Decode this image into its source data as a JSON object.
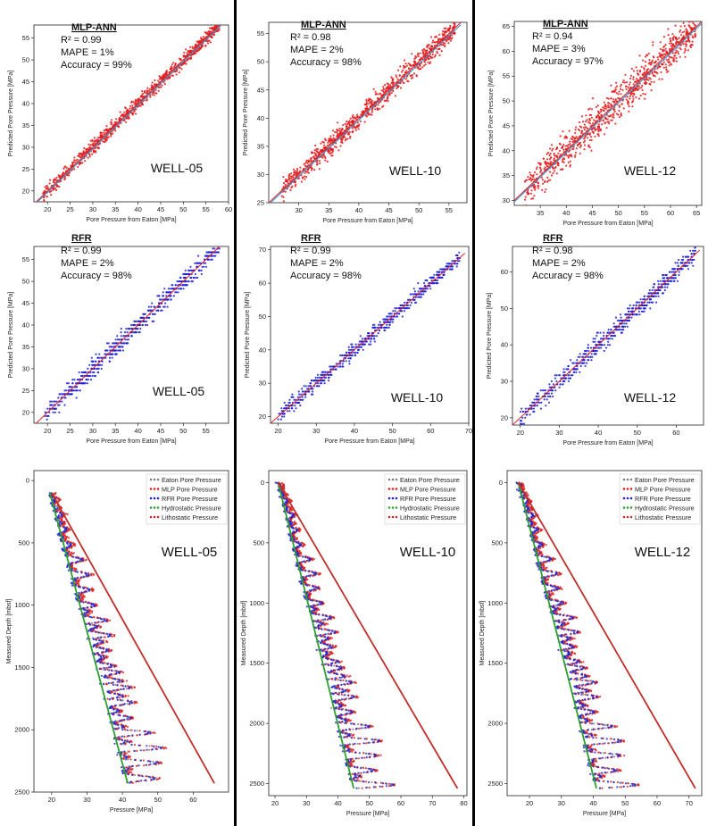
{
  "colors": {
    "mlp_points": "#e31a1c",
    "rfr_points": "#1f1fd6",
    "fit_line": "#4a90c8",
    "identity_line": "#e02020",
    "eaton": "#7f7f7f",
    "hydrostatic": "#2ca02c",
    "lithostatic": "#c0302a",
    "separator": "#000000"
  },
  "chart_data": [
    {
      "type": "scatter",
      "model": "MLP-ANN",
      "well": "WELL-05",
      "title": "",
      "xlabel": "Pore Pressure from Eaton [MPa]",
      "ylabel": "Predicted Pore Pressure [MPa]",
      "xlim": [
        17,
        60
      ],
      "ylim": [
        17.5,
        58
      ],
      "xticks": [
        20,
        25,
        30,
        35,
        40,
        45,
        50,
        55,
        60
      ],
      "yticks": [
        20,
        25,
        30,
        35,
        40,
        45,
        50,
        55
      ],
      "stats": [
        "R² = 0.99",
        "MAPE = 1%",
        "Accuracy = 99%"
      ],
      "x_range": [
        19,
        58
      ],
      "spread": 1.5,
      "color": "mlp_points"
    },
    {
      "type": "scatter",
      "model": "MLP-ANN",
      "well": "WELL-10",
      "title": "",
      "xlabel": "Pore Pressure from Eaton [MPa]",
      "ylabel": "Predicted Pore Pressure [MPa]",
      "xlim": [
        25,
        58
      ],
      "ylim": [
        25,
        57
      ],
      "xticks": [
        30,
        35,
        40,
        45,
        50,
        55
      ],
      "yticks": [
        25,
        30,
        35,
        40,
        45,
        50,
        55
      ],
      "stats": [
        "R² = 0.98",
        "MAPE = 2%",
        "Accuracy = 98%"
      ],
      "x_range": [
        27,
        56
      ],
      "spread": 1.8,
      "color": "mlp_points"
    },
    {
      "type": "scatter",
      "model": "MLP-ANN",
      "well": "WELL-12",
      "title": "",
      "xlabel": "Pore Pressure from Eaton [MPa]",
      "ylabel": "Predicted Pore Pressure [MPa]",
      "xlim": [
        30,
        66
      ],
      "ylim": [
        29,
        66
      ],
      "xticks": [
        35,
        40,
        45,
        50,
        55,
        60,
        65
      ],
      "yticks": [
        30,
        35,
        40,
        45,
        50,
        55,
        60,
        65
      ],
      "stats": [
        "R² = 0.94",
        "MAPE = 3%",
        "Accuracy = 97%"
      ],
      "x_range": [
        32,
        65
      ],
      "spread": 3.5,
      "color": "mlp_points"
    },
    {
      "type": "scatter",
      "model": "RFR",
      "well": "WELL-05",
      "title": "",
      "xlabel": "Pore Pressure from Eaton [MPa]",
      "ylabel": "Predicted Pore Pressure [MPa]",
      "xlim": [
        17,
        60
      ],
      "ylim": [
        17.5,
        58
      ],
      "xticks": [
        20,
        25,
        30,
        35,
        40,
        45,
        50,
        55
      ],
      "yticks": [
        20,
        25,
        30,
        35,
        40,
        45,
        50,
        55
      ],
      "stats": [
        "R² = 0.99",
        "MAPE = 2%",
        "Accuracy = 98%"
      ],
      "x_range": [
        19,
        58
      ],
      "spread": 2.0,
      "color": "rfr_points"
    },
    {
      "type": "scatter",
      "model": "RFR",
      "well": "WELL-10",
      "title": "",
      "xlabel": "Pore Pressure from Eaton [MPa]",
      "ylabel": "Predicted Pore Pressure [MPa]",
      "xlim": [
        18,
        70
      ],
      "ylim": [
        18,
        71
      ],
      "xticks": [
        20,
        30,
        40,
        50,
        60,
        70
      ],
      "yticks": [
        20,
        30,
        40,
        50,
        60,
        70
      ],
      "stats": [
        "R² = 0.99",
        "MAPE = 2%",
        "Accuracy = 98%"
      ],
      "x_range": [
        20,
        68
      ],
      "spread": 2.0,
      "color": "rfr_points"
    },
    {
      "type": "scatter",
      "model": "RFR",
      "well": "WELL-12",
      "title": "",
      "xlabel": "Pore Pressure from Eaton [MPa]",
      "ylabel": "Predicted Pore Pressure [MPa]",
      "xlim": [
        18,
        67
      ],
      "ylim": [
        18,
        67
      ],
      "xticks": [
        20,
        30,
        40,
        50,
        60
      ],
      "yticks": [
        20,
        30,
        40,
        50,
        60
      ],
      "stats": [
        "R² = 0.98",
        "MAPE = 2%",
        "Accuracy = 98%"
      ],
      "x_range": [
        20,
        65
      ],
      "spread": 2.5,
      "color": "rfr_points"
    },
    {
      "type": "line",
      "well": "WELL-05",
      "title": "",
      "xlabel": "Pressure [MPa]",
      "ylabel": "Measured Depth [mbsf]",
      "xlim": [
        15,
        70
      ],
      "ylim": [
        2500,
        -80
      ],
      "y_inverted": true,
      "xticks": [
        20,
        30,
        40,
        50,
        60
      ],
      "yticks": [
        0,
        500,
        1000,
        1500,
        2000,
        2500
      ],
      "legend": [
        "Eaton Pore Pressure",
        "MLP Pore Pressure",
        "RFR Pore Pressure",
        "Hydrostatic Pressure",
        "Lithostatic Pressure"
      ],
      "hydrostatic": {
        "depth": [
          100,
          2430
        ],
        "pressure": [
          19.5,
          41.5
        ]
      },
      "lithostatic": {
        "depth": [
          100,
          2430
        ],
        "pressure": [
          20,
          66
        ]
      },
      "depth_range": [
        100,
        2430
      ]
    },
    {
      "type": "line",
      "well": "WELL-10",
      "title": "",
      "xlabel": "Pressure [MPa]",
      "ylabel": "Measured Depth [mbsf]",
      "xlim": [
        18,
        81
      ],
      "ylim": [
        2600,
        -100
      ],
      "y_inverted": true,
      "xticks": [
        20,
        30,
        40,
        50,
        60,
        70,
        80
      ],
      "yticks": [
        0,
        500,
        1000,
        1500,
        2000,
        2500
      ],
      "legend": [
        "Eaton Pore Pressure",
        "MLP Pore Pressure",
        "RFR Pore Pressure",
        "Hydrostatic Pressure",
        "Lithostatic Pressure"
      ],
      "hydrostatic": {
        "depth": [
          0,
          2540
        ],
        "pressure": [
          21,
          45
        ]
      },
      "lithostatic": {
        "depth": [
          0,
          2540
        ],
        "pressure": [
          21,
          78
        ]
      },
      "depth_range": [
        0,
        2540
      ]
    },
    {
      "type": "line",
      "well": "WELL-12",
      "title": "",
      "xlabel": "Pressure [MPa]",
      "ylabel": "Measured Depth [mbsf]",
      "xlim": [
        13,
        74
      ],
      "ylim": [
        2600,
        -100
      ],
      "y_inverted": true,
      "xticks": [
        20,
        30,
        40,
        50,
        60,
        70
      ],
      "yticks": [
        0,
        500,
        1000,
        1500,
        2000,
        2500
      ],
      "legend": [
        "Eaton Pore Pressure",
        "MLP Pore Pressure",
        "RFR Pore Pressure",
        "Hydrostatic Pressure",
        "Lithostatic Pressure"
      ],
      "hydrostatic": {
        "depth": [
          0,
          2540
        ],
        "pressure": [
          16.5,
          41
        ]
      },
      "lithostatic": {
        "depth": [
          0,
          2540
        ],
        "pressure": [
          16.5,
          72
        ]
      },
      "depth_range": [
        0,
        2540
      ]
    }
  ]
}
